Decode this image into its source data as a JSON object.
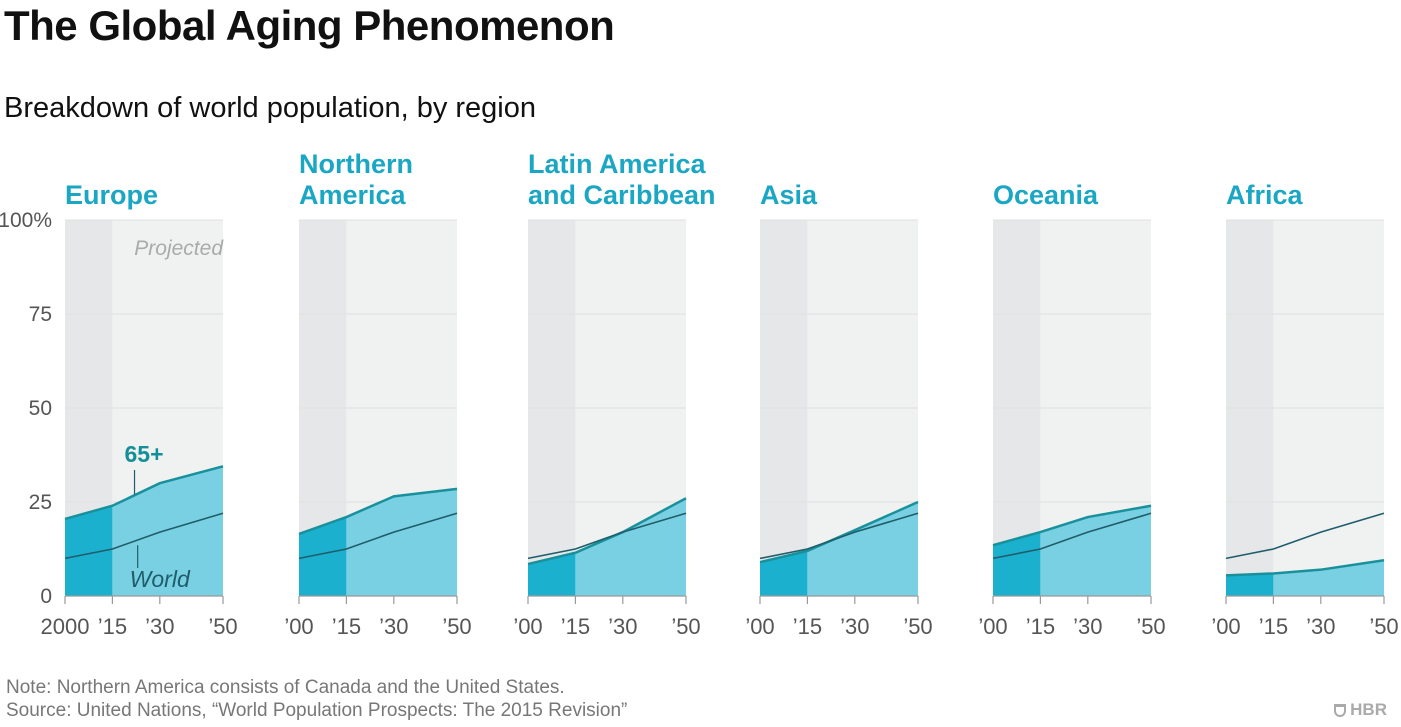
{
  "header": {
    "title": "The Global Aging Phenomenon",
    "subtitle": "Breakdown of world population, by region"
  },
  "footer": {
    "note": "Note: Northern America consists of Canada and the United States.",
    "source": "Source: United Nations, “World Population Prospects: The 2015 Revision”",
    "brand": "HBR"
  },
  "colors": {
    "historic_fill": "#1cb0cf",
    "projected_fill": "#79d0e2",
    "region_line": "#19919c",
    "world_line": "#1f5d6b",
    "historic_bg": "#e6e7e8",
    "projected_bg": "#f0f1f1",
    "region_title": "#1ba7c4"
  },
  "chart_data": {
    "type": "area",
    "y_tick_labels": [
      "100%",
      "75",
      "50",
      "25",
      "0"
    ],
    "y_ticks": [
      100,
      75,
      50,
      25,
      0
    ],
    "ylim": [
      0,
      100
    ],
    "x": [
      2000,
      2015,
      2030,
      2050
    ],
    "projection_start": 2015,
    "projected_label": "Projected",
    "label_65": "65+",
    "label_world": "World",
    "world": [
      10,
      12.5,
      17,
      22
    ],
    "panels": [
      {
        "name": "Europe",
        "x_tick_labels": [
          "2000",
          "’15",
          "’30",
          "’50"
        ],
        "values": [
          20.5,
          24,
          30,
          34.5
        ]
      },
      {
        "name": "Northern America",
        "x_tick_labels": [
          "’00",
          "’15",
          "’30",
          "’50"
        ],
        "values": [
          16.5,
          21,
          26.5,
          28.5
        ]
      },
      {
        "name": "Latin America and Caribbean",
        "x_tick_labels": [
          "’00",
          "’15",
          "’30",
          "’50"
        ],
        "values": [
          8.5,
          11.5,
          17,
          26
        ]
      },
      {
        "name": "Asia",
        "x_tick_labels": [
          "’00",
          "’15",
          "’30",
          "’50"
        ],
        "values": [
          9,
          12,
          17.5,
          25
        ]
      },
      {
        "name": "Oceania",
        "x_tick_labels": [
          "’00",
          "’15",
          "’30",
          "’50"
        ],
        "values": [
          13.5,
          17,
          21,
          24
        ]
      },
      {
        "name": "Africa",
        "x_tick_labels": [
          "’00",
          "’15",
          "’30",
          "’50"
        ],
        "values": [
          5.5,
          6,
          7,
          9.5
        ]
      }
    ]
  }
}
